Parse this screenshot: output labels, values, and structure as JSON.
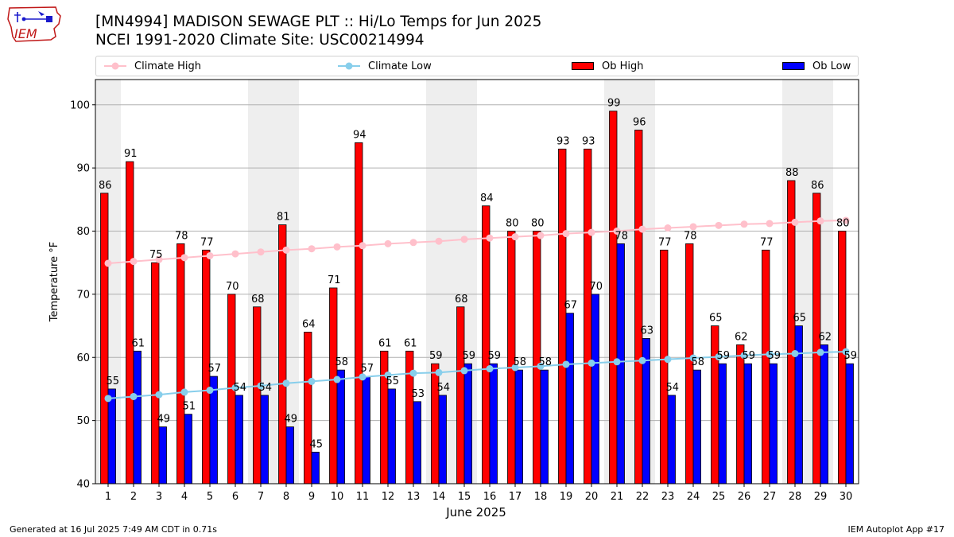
{
  "header": {
    "title": "[MN4994] MADISON SEWAGE PLT :: Hi/Lo Temps for Jun 2025",
    "subtitle": "NCEI 1991-2020 Climate Site: USC00214994"
  },
  "logo": {
    "text": "IEM",
    "icon": "iem-iowa-logo"
  },
  "legend": {
    "climate_high": "Climate High",
    "climate_low": "Climate Low",
    "ob_high": "Ob High",
    "ob_low": "Ob Low"
  },
  "footer": {
    "generated": "Generated at 16 Jul 2025 7:49 AM CDT in 0.71s",
    "app": "IEM Autoplot App #17"
  },
  "colors": {
    "ob_high": "#ff0000",
    "ob_low": "#0000ff",
    "climate_high": "#ffc0cb",
    "climate_low": "#87ceeb",
    "weekend_shade": "#eeeeee",
    "grid": "#b0b0b0"
  },
  "chart_data": {
    "type": "bar",
    "xlabel": "June 2025",
    "ylabel": "Temperature °F",
    "ylim": [
      40,
      104
    ],
    "yticks": [
      40,
      50,
      60,
      70,
      80,
      90,
      100
    ],
    "grid": "horizontal",
    "legend_position": "top",
    "categories": [
      1,
      2,
      3,
      4,
      5,
      6,
      7,
      8,
      9,
      10,
      11,
      12,
      13,
      14,
      15,
      16,
      17,
      18,
      19,
      20,
      21,
      22,
      23,
      24,
      25,
      26,
      27,
      28,
      29,
      30
    ],
    "shaded_days": [
      1,
      7,
      8,
      14,
      15,
      21,
      22,
      28,
      29
    ],
    "series": [
      {
        "name": "Ob High",
        "type": "bar",
        "values": [
          86,
          91,
          75,
          78,
          77,
          70,
          68,
          81,
          64,
          71,
          94,
          61,
          61,
          59,
          68,
          84,
          80,
          80,
          93,
          93,
          99,
          96,
          77,
          78,
          65,
          62,
          77,
          88,
          86,
          80
        ]
      },
      {
        "name": "Ob Low",
        "type": "bar",
        "values": [
          55,
          61,
          49,
          51,
          57,
          54,
          54,
          49,
          45,
          58,
          57,
          55,
          53,
          54,
          59,
          59,
          58,
          58,
          67,
          70,
          78,
          63,
          54,
          58,
          59,
          59,
          59,
          65,
          62,
          59
        ]
      },
      {
        "name": "Climate High",
        "type": "line",
        "values": [
          74.9,
          75.2,
          75.5,
          75.8,
          76.1,
          76.4,
          76.7,
          77.0,
          77.2,
          77.5,
          77.7,
          78.0,
          78.2,
          78.4,
          78.7,
          78.9,
          79.1,
          79.3,
          79.6,
          79.8,
          80.0,
          80.3,
          80.5,
          80.7,
          80.9,
          81.1,
          81.2,
          81.4,
          81.6,
          81.7
        ]
      },
      {
        "name": "Climate Low",
        "type": "line",
        "values": [
          53.5,
          53.8,
          54.1,
          54.5,
          54.8,
          55.2,
          55.5,
          55.9,
          56.2,
          56.5,
          56.9,
          57.2,
          57.5,
          57.6,
          57.9,
          58.2,
          58.4,
          58.6,
          58.9,
          59.1,
          59.3,
          59.5,
          59.7,
          59.9,
          60.1,
          60.3,
          60.5,
          60.6,
          60.8,
          60.9
        ]
      }
    ]
  }
}
